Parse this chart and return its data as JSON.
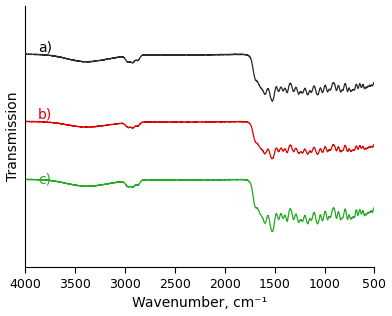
{
  "xlabel": "Wavenumber, cm⁻¹",
  "ylabel": "Transmission",
  "xlim": [
    4000,
    500
  ],
  "xticks": [
    4000,
    3500,
    3000,
    2500,
    2000,
    1500,
    1000,
    500
  ],
  "colors": {
    "a": "#2a2a2a",
    "b": "#dd0000",
    "c": "#22aa22"
  },
  "labels": {
    "a": "a)",
    "b": "b)",
    "c": "c)"
  },
  "background_color": "#ffffff",
  "linewidth": 0.9
}
